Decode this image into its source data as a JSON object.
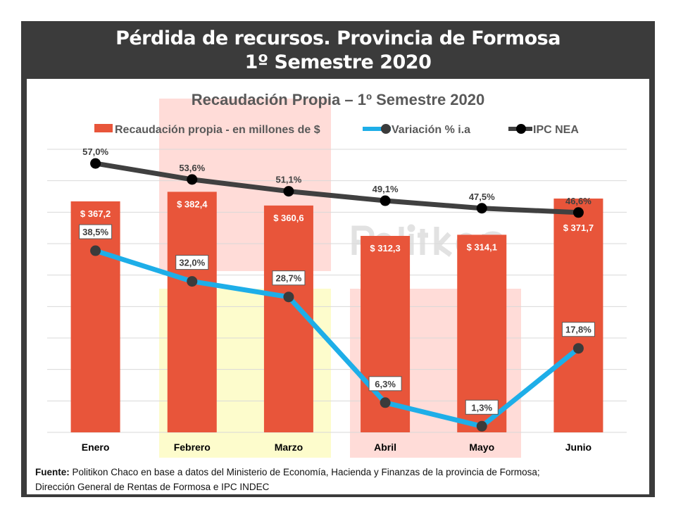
{
  "header": {
    "title_line1": "Pérdida de recursos. Provincia de Formosa",
    "title_line2": "1º Semestre 2020"
  },
  "watermark": "Politikon",
  "chart_data": {
    "type": "bar+line",
    "title": "Recaudación Propia – 1º Semestre 2020",
    "categories": [
      "Enero",
      "Febrero",
      "Marzo",
      "Abril",
      "Mayo",
      "Junio"
    ],
    "series": [
      {
        "name": "Recaudación propia - en millones de $",
        "type": "bar",
        "axis": "primary",
        "color": "#e8553a",
        "values": [
          367.2,
          382.4,
          360.6,
          312.3,
          314.1,
          371.7
        ],
        "labels": [
          "$ 367,2",
          "$ 382,4",
          "$ 360,6",
          "$ 312,3",
          "$ 314,1",
          "$ 371,7"
        ]
      },
      {
        "name": "Variación % i.a",
        "type": "line",
        "axis": "secondary",
        "color": "#1eaee8",
        "marker_color": "#3b3b3b",
        "values": [
          38.5,
          32.0,
          28.7,
          6.3,
          1.3,
          17.8
        ],
        "labels": [
          "38,5%",
          "32,0%",
          "28,7%",
          "6,3%",
          "1,3%",
          "17,8%"
        ]
      },
      {
        "name": "IPC NEA",
        "type": "line",
        "axis": "secondary",
        "color": "#404040",
        "marker_color": "#000000",
        "values": [
          57.0,
          53.6,
          51.1,
          49.1,
          47.5,
          46.6
        ],
        "labels": [
          "57,0%",
          "53,6%",
          "51,1%",
          "49,1%",
          "47,5%",
          "46,6%"
        ]
      }
    ],
    "primary_ylim": [
      0,
      450
    ],
    "secondary_ylim": [
      0,
      60
    ],
    "grid": true,
    "legend": "top"
  },
  "source": {
    "label": "Fuente:",
    "line1": "Politikon Chaco en base a datos del Ministerio de Economía, Hacienda y Finanzas de la provincia de Formosa;",
    "line2": "Dirección General de Rentas de Formosa e IPC INDEC"
  }
}
